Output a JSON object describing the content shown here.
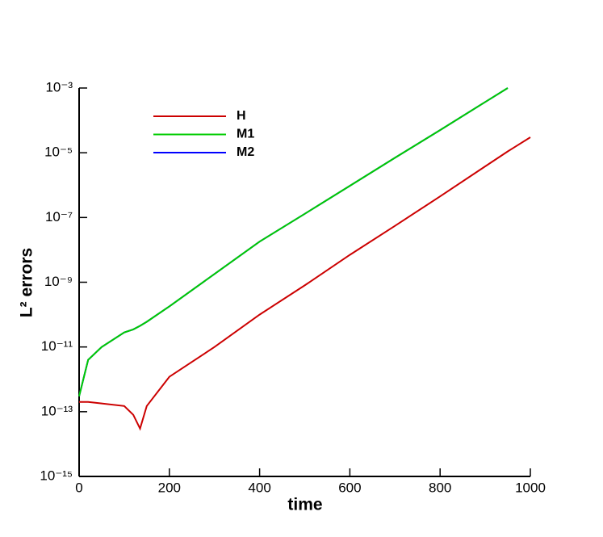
{
  "chart_data": {
    "type": "line",
    "x_label": "time",
    "y_label": "L² errors",
    "log_y": true,
    "legend": "top-left",
    "x": [
      0,
      20,
      50,
      100,
      120,
      135,
      150,
      200,
      300,
      400,
      500,
      600,
      700,
      800,
      900,
      950,
      1000
    ],
    "series": [
      {
        "name": "H",
        "color": "#cc0000",
        "values": [
          2e-13,
          2e-13,
          1.8e-13,
          1.5e-13,
          8e-14,
          3e-14,
          1.5e-13,
          1.2e-12,
          1e-11,
          1e-10,
          8e-10,
          7e-09,
          5.5e-08,
          4.5e-07,
          3.8e-06,
          1.1e-05,
          3e-05
        ]
      },
      {
        "name": "M1",
        "color": "#00cc00",
        "values": [
          3e-13,
          4e-12,
          1e-11,
          2.8e-11,
          3.5e-11,
          4.5e-11,
          6e-11,
          1.8e-10,
          1.8e-09,
          1.8e-08,
          1.3e-07,
          9.5e-07,
          7e-06,
          5e-05,
          0.00037,
          0.001,
          null
        ]
      },
      {
        "name": "M2",
        "color": "#0000ff",
        "values": [
          3e-13,
          4e-12,
          1e-11,
          2.8e-11,
          3.5e-11,
          4.5e-11,
          6e-11,
          1.8e-10,
          1.8e-09,
          1.8e-08,
          1.3e-07,
          9.5e-07,
          7e-06,
          5e-05,
          0.00037,
          0.001,
          null
        ]
      }
    ],
    "xlim": [
      0,
      1000
    ],
    "xticks": [
      0,
      200,
      400,
      600,
      800,
      1000
    ],
    "ylim": [
      1e-15,
      0.001
    ],
    "yticks": [
      {
        "value": 1e-15,
        "label": "10⁻¹⁵"
      },
      {
        "value": 1e-13,
        "label": "10⁻¹³"
      },
      {
        "value": 1e-11,
        "label": "10⁻¹¹"
      },
      {
        "value": 1e-09,
        "label": "10⁻⁹"
      },
      {
        "value": 1e-07,
        "label": "10⁻⁷"
      },
      {
        "value": 1e-05,
        "label": "10⁻⁵"
      },
      {
        "value": 0.001,
        "label": "10⁻³"
      }
    ]
  }
}
